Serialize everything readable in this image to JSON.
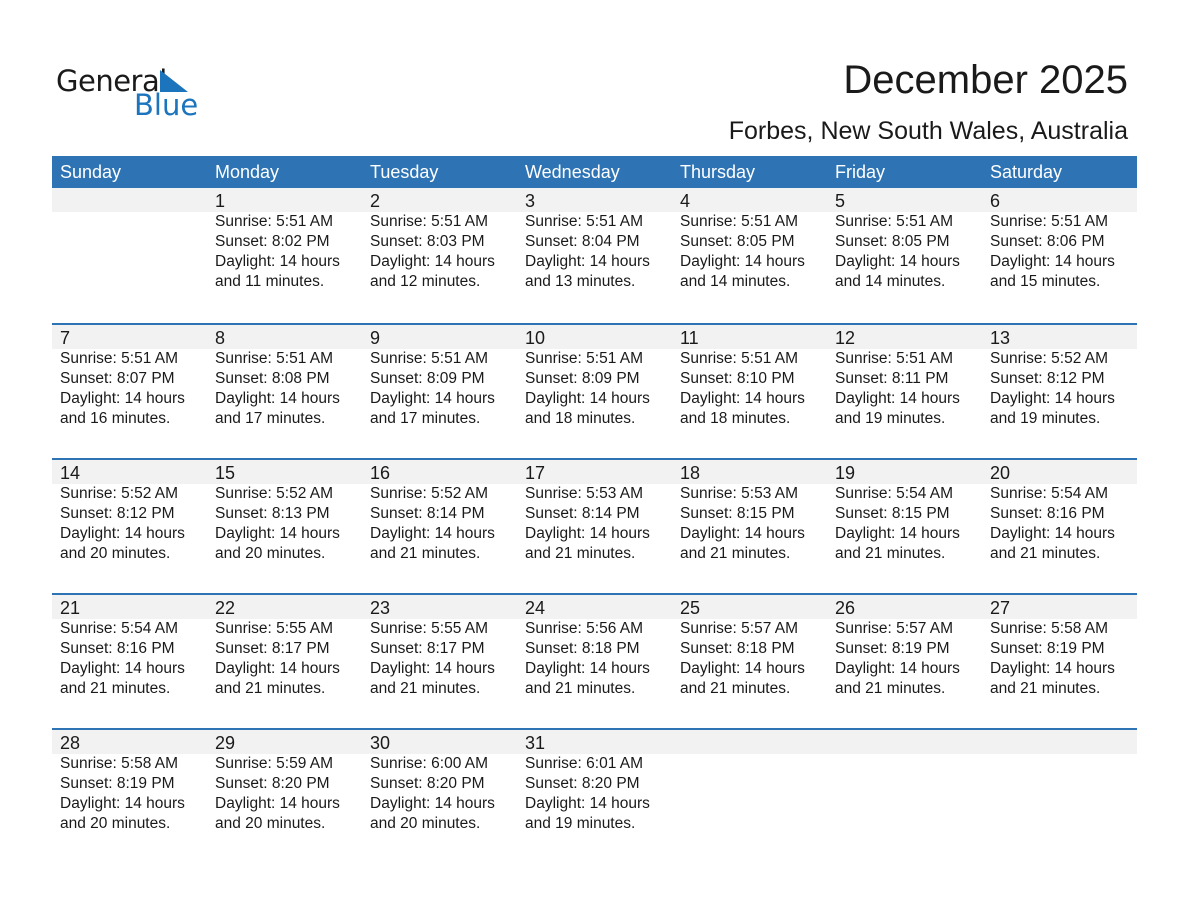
{
  "logo": {
    "text_general": "General",
    "text_blue": "Blue"
  },
  "title": "December 2025",
  "subtitle": "Forbes, New South Wales, Australia",
  "colors": {
    "header": "#2e74b5",
    "shade": "#f2f2f2",
    "logo_blue": "#1c75bc"
  },
  "weekdays": [
    "Sunday",
    "Monday",
    "Tuesday",
    "Wednesday",
    "Thursday",
    "Friday",
    "Saturday"
  ],
  "weeks": [
    [
      null,
      {
        "day": "1",
        "sunrise": "Sunrise: 5:51 AM",
        "sunset": "Sunset: 8:02 PM",
        "daylight": "Daylight: 14 hours",
        "minutes": "and 11 minutes."
      },
      {
        "day": "2",
        "sunrise": "Sunrise: 5:51 AM",
        "sunset": "Sunset: 8:03 PM",
        "daylight": "Daylight: 14 hours",
        "minutes": "and 12 minutes."
      },
      {
        "day": "3",
        "sunrise": "Sunrise: 5:51 AM",
        "sunset": "Sunset: 8:04 PM",
        "daylight": "Daylight: 14 hours",
        "minutes": "and 13 minutes."
      },
      {
        "day": "4",
        "sunrise": "Sunrise: 5:51 AM",
        "sunset": "Sunset: 8:05 PM",
        "daylight": "Daylight: 14 hours",
        "minutes": "and 14 minutes."
      },
      {
        "day": "5",
        "sunrise": "Sunrise: 5:51 AM",
        "sunset": "Sunset: 8:05 PM",
        "daylight": "Daylight: 14 hours",
        "minutes": "and 14 minutes."
      },
      {
        "day": "6",
        "sunrise": "Sunrise: 5:51 AM",
        "sunset": "Sunset: 8:06 PM",
        "daylight": "Daylight: 14 hours",
        "minutes": "and 15 minutes."
      }
    ],
    [
      {
        "day": "7",
        "sunrise": "Sunrise: 5:51 AM",
        "sunset": "Sunset: 8:07 PM",
        "daylight": "Daylight: 14 hours",
        "minutes": "and 16 minutes."
      },
      {
        "day": "8",
        "sunrise": "Sunrise: 5:51 AM",
        "sunset": "Sunset: 8:08 PM",
        "daylight": "Daylight: 14 hours",
        "minutes": "and 17 minutes."
      },
      {
        "day": "9",
        "sunrise": "Sunrise: 5:51 AM",
        "sunset": "Sunset: 8:09 PM",
        "daylight": "Daylight: 14 hours",
        "minutes": "and 17 minutes."
      },
      {
        "day": "10",
        "sunrise": "Sunrise: 5:51 AM",
        "sunset": "Sunset: 8:09 PM",
        "daylight": "Daylight: 14 hours",
        "minutes": "and 18 minutes."
      },
      {
        "day": "11",
        "sunrise": "Sunrise: 5:51 AM",
        "sunset": "Sunset: 8:10 PM",
        "daylight": "Daylight: 14 hours",
        "minutes": "and 18 minutes."
      },
      {
        "day": "12",
        "sunrise": "Sunrise: 5:51 AM",
        "sunset": "Sunset: 8:11 PM",
        "daylight": "Daylight: 14 hours",
        "minutes": "and 19 minutes."
      },
      {
        "day": "13",
        "sunrise": "Sunrise: 5:52 AM",
        "sunset": "Sunset: 8:12 PM",
        "daylight": "Daylight: 14 hours",
        "minutes": "and 19 minutes."
      }
    ],
    [
      {
        "day": "14",
        "sunrise": "Sunrise: 5:52 AM",
        "sunset": "Sunset: 8:12 PM",
        "daylight": "Daylight: 14 hours",
        "minutes": "and 20 minutes."
      },
      {
        "day": "15",
        "sunrise": "Sunrise: 5:52 AM",
        "sunset": "Sunset: 8:13 PM",
        "daylight": "Daylight: 14 hours",
        "minutes": "and 20 minutes."
      },
      {
        "day": "16",
        "sunrise": "Sunrise: 5:52 AM",
        "sunset": "Sunset: 8:14 PM",
        "daylight": "Daylight: 14 hours",
        "minutes": "and 21 minutes."
      },
      {
        "day": "17",
        "sunrise": "Sunrise: 5:53 AM",
        "sunset": "Sunset: 8:14 PM",
        "daylight": "Daylight: 14 hours",
        "minutes": "and 21 minutes."
      },
      {
        "day": "18",
        "sunrise": "Sunrise: 5:53 AM",
        "sunset": "Sunset: 8:15 PM",
        "daylight": "Daylight: 14 hours",
        "minutes": "and 21 minutes."
      },
      {
        "day": "19",
        "sunrise": "Sunrise: 5:54 AM",
        "sunset": "Sunset: 8:15 PM",
        "daylight": "Daylight: 14 hours",
        "minutes": "and 21 minutes."
      },
      {
        "day": "20",
        "sunrise": "Sunrise: 5:54 AM",
        "sunset": "Sunset: 8:16 PM",
        "daylight": "Daylight: 14 hours",
        "minutes": "and 21 minutes."
      }
    ],
    [
      {
        "day": "21",
        "sunrise": "Sunrise: 5:54 AM",
        "sunset": "Sunset: 8:16 PM",
        "daylight": "Daylight: 14 hours",
        "minutes": "and 21 minutes."
      },
      {
        "day": "22",
        "sunrise": "Sunrise: 5:55 AM",
        "sunset": "Sunset: 8:17 PM",
        "daylight": "Daylight: 14 hours",
        "minutes": "and 21 minutes."
      },
      {
        "day": "23",
        "sunrise": "Sunrise: 5:55 AM",
        "sunset": "Sunset: 8:17 PM",
        "daylight": "Daylight: 14 hours",
        "minutes": "and 21 minutes."
      },
      {
        "day": "24",
        "sunrise": "Sunrise: 5:56 AM",
        "sunset": "Sunset: 8:18 PM",
        "daylight": "Daylight: 14 hours",
        "minutes": "and 21 minutes."
      },
      {
        "day": "25",
        "sunrise": "Sunrise: 5:57 AM",
        "sunset": "Sunset: 8:18 PM",
        "daylight": "Daylight: 14 hours",
        "minutes": "and 21 minutes."
      },
      {
        "day": "26",
        "sunrise": "Sunrise: 5:57 AM",
        "sunset": "Sunset: 8:19 PM",
        "daylight": "Daylight: 14 hours",
        "minutes": "and 21 minutes."
      },
      {
        "day": "27",
        "sunrise": "Sunrise: 5:58 AM",
        "sunset": "Sunset: 8:19 PM",
        "daylight": "Daylight: 14 hours",
        "minutes": "and 21 minutes."
      }
    ],
    [
      {
        "day": "28",
        "sunrise": "Sunrise: 5:58 AM",
        "sunset": "Sunset: 8:19 PM",
        "daylight": "Daylight: 14 hours",
        "minutes": "and 20 minutes."
      },
      {
        "day": "29",
        "sunrise": "Sunrise: 5:59 AM",
        "sunset": "Sunset: 8:20 PM",
        "daylight": "Daylight: 14 hours",
        "minutes": "and 20 minutes."
      },
      {
        "day": "30",
        "sunrise": "Sunrise: 6:00 AM",
        "sunset": "Sunset: 8:20 PM",
        "daylight": "Daylight: 14 hours",
        "minutes": "and 20 minutes."
      },
      {
        "day": "31",
        "sunrise": "Sunrise: 6:01 AM",
        "sunset": "Sunset: 8:20 PM",
        "daylight": "Daylight: 14 hours",
        "minutes": "and 19 minutes."
      },
      null,
      null,
      null
    ]
  ]
}
